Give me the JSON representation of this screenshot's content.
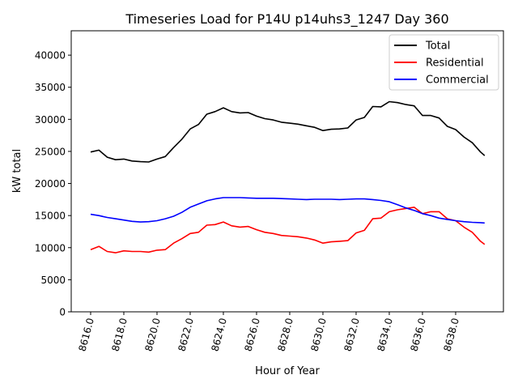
{
  "chart_data": {
    "type": "line",
    "title": "Timeseries Load for P14U p14uhs3_1247  Day 360",
    "xlabel": "Hour of Year",
    "ylabel": "kW total",
    "xlim": [
      8614.83,
      8640.88
    ],
    "ylim": [
      0,
      43800
    ],
    "xticks": [
      8616,
      8618,
      8620,
      8622,
      8624,
      8626,
      8628,
      8630,
      8632,
      8634,
      8636,
      8638
    ],
    "xtick_labels": [
      "8616.0",
      "8618.0",
      "8620.0",
      "8622.0",
      "8624.0",
      "8626.0",
      "8628.0",
      "8630.0",
      "8632.0",
      "8634.0",
      "8636.0",
      "8638.0"
    ],
    "yticks": [
      0,
      5000,
      10000,
      15000,
      20000,
      25000,
      30000,
      35000,
      40000
    ],
    "ytick_labels": [
      "0",
      "5000",
      "10000",
      "15000",
      "20000",
      "25000",
      "30000",
      "35000",
      "40000"
    ],
    "grid": false,
    "legend_position": "top-right",
    "x": [
      8616,
      8616.5,
      8617,
      8617.5,
      8618,
      8618.5,
      8619,
      8619.5,
      8620,
      8620.5,
      8621,
      8621.5,
      8622,
      8622.5,
      8623,
      8623.5,
      8624,
      8624.5,
      8625,
      8625.5,
      8626,
      8626.5,
      8627,
      8627.5,
      8628,
      8628.5,
      8629,
      8629.5,
      8630,
      8630.5,
      8631,
      8631.5,
      8632,
      8632.5,
      8633,
      8633.5,
      8634,
      8634.5,
      8635,
      8635.5,
      8636,
      8636.5,
      8637,
      8637.5,
      8638,
      8638.5,
      8639,
      8639.5,
      8639.75
    ],
    "series": [
      {
        "name": "Total",
        "color": "#000000",
        "values": [
          24900,
          25200,
          24100,
          23700,
          23800,
          23500,
          23400,
          23350,
          23800,
          24200,
          25600,
          26900,
          28500,
          29200,
          30800,
          31200,
          31800,
          31200,
          31000,
          31050,
          30500,
          30100,
          29900,
          29550,
          29400,
          29250,
          29000,
          28750,
          28250,
          28450,
          28500,
          28650,
          29900,
          30300,
          32000,
          31950,
          32750,
          32600,
          32300,
          32100,
          30600,
          30600,
          30200,
          28900,
          28400,
          27250,
          26350,
          24900,
          24350
        ]
      },
      {
        "name": "Residential",
        "color": "#ff0000",
        "values": [
          9700,
          10200,
          9400,
          9200,
          9500,
          9400,
          9400,
          9300,
          9600,
          9700,
          10700,
          11400,
          12200,
          12400,
          13500,
          13600,
          14000,
          13400,
          13200,
          13300,
          12800,
          12400,
          12200,
          11900,
          11800,
          11700,
          11500,
          11200,
          10700,
          10900,
          11000,
          11100,
          12300,
          12700,
          14500,
          14600,
          15600,
          15900,
          16100,
          16300,
          15300,
          15600,
          15600,
          14500,
          14200,
          13200,
          12400,
          11000,
          10500
        ]
      },
      {
        "name": "Commercial",
        "color": "#0000ff",
        "values": [
          15200,
          15000,
          14700,
          14500,
          14300,
          14100,
          14000,
          14050,
          14200,
          14500,
          14900,
          15500,
          16300,
          16800,
          17300,
          17600,
          17800,
          17800,
          17800,
          17750,
          17700,
          17700,
          17700,
          17650,
          17600,
          17550,
          17500,
          17550,
          17550,
          17550,
          17500,
          17550,
          17600,
          17600,
          17500,
          17350,
          17150,
          16700,
          16200,
          15800,
          15300,
          15000,
          14600,
          14400,
          14200,
          14050,
          13950,
          13900,
          13850
        ]
      }
    ]
  }
}
